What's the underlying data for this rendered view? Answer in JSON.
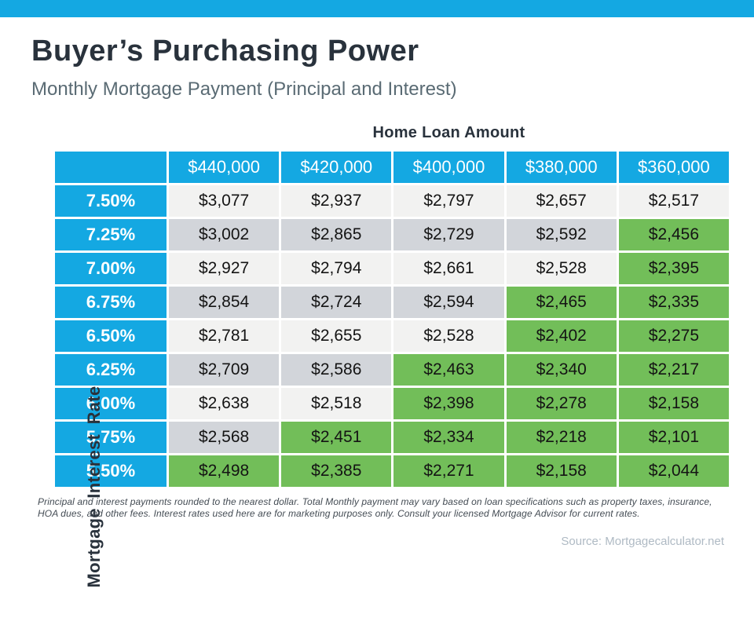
{
  "page": {
    "title": "Buyer’s Purchasing Power",
    "subtitle": "Monthly Mortgage Payment (Principal and Interest)",
    "column_group_heading": "Home Loan Amount",
    "row_group_heading": "Mortgage Interest Rate",
    "footnote": "Principal and interest payments rounded to the nearest dollar. Total Monthly payment may vary based on loan specifications such as property taxes, insurance, HOA dues, and other fees. Interest rates used here are for marketing purposes only. Consult your licensed Mortgage Advisor for current rates.",
    "source": "Source: Mortgagecalculator.net"
  },
  "colors": {
    "accent_cyan": "#14A8E2",
    "navy": "#29323C",
    "slate": "#5A6B74",
    "green_highlight": "#72BE59",
    "row_light": "#F2F2F1",
    "row_dark": "#D2D5DA",
    "footnote_gray": "#444C54",
    "source_gray": "#AFBAC4"
  },
  "chart_data": {
    "type": "table",
    "title": "Buyer’s Purchasing Power",
    "subtitle": "Monthly Mortgage Payment (Principal and Interest)",
    "column_header_group": "Home Loan Amount",
    "row_header_group": "Mortgage Interest Rate",
    "columns": [
      "$440,000",
      "$420,000",
      "$400,000",
      "$380,000",
      "$360,000"
    ],
    "rows": [
      {
        "rate": "7.50%",
        "values": [
          "$3,077",
          "$2,937",
          "$2,797",
          "$2,657",
          "$2,517"
        ],
        "highlighted": [
          false,
          false,
          false,
          false,
          false
        ]
      },
      {
        "rate": "7.25%",
        "values": [
          "$3,002",
          "$2,865",
          "$2,729",
          "$2,592",
          "$2,456"
        ],
        "highlighted": [
          false,
          false,
          false,
          false,
          true
        ]
      },
      {
        "rate": "7.00%",
        "values": [
          "$2,927",
          "$2,794",
          "$2,661",
          "$2,528",
          "$2,395"
        ],
        "highlighted": [
          false,
          false,
          false,
          false,
          true
        ]
      },
      {
        "rate": "6.75%",
        "values": [
          "$2,854",
          "$2,724",
          "$2,594",
          "$2,465",
          "$2,335"
        ],
        "highlighted": [
          false,
          false,
          false,
          true,
          true
        ]
      },
      {
        "rate": "6.50%",
        "values": [
          "$2,781",
          "$2,655",
          "$2,528",
          "$2,402",
          "$2,275"
        ],
        "highlighted": [
          false,
          false,
          false,
          true,
          true
        ]
      },
      {
        "rate": "6.25%",
        "values": [
          "$2,709",
          "$2,586",
          "$2,463",
          "$2,340",
          "$2,217"
        ],
        "highlighted": [
          false,
          false,
          true,
          true,
          true
        ]
      },
      {
        "rate": "6.00%",
        "values": [
          "$2,638",
          "$2,518",
          "$2,398",
          "$2,278",
          "$2,158"
        ],
        "highlighted": [
          false,
          false,
          true,
          true,
          true
        ]
      },
      {
        "rate": "5.75%",
        "values": [
          "$2,568",
          "$2,451",
          "$2,334",
          "$2,218",
          "$2,101"
        ],
        "highlighted": [
          false,
          true,
          true,
          true,
          true
        ]
      },
      {
        "rate": "5.50%",
        "values": [
          "$2,498",
          "$2,385",
          "$2,271",
          "$2,158",
          "$2,044"
        ],
        "highlighted": [
          true,
          true,
          true,
          true,
          true
        ]
      }
    ],
    "highlight_meaning": "green cells mark payments at or below approximately $2,500",
    "grid": false,
    "legend_position": "none"
  }
}
